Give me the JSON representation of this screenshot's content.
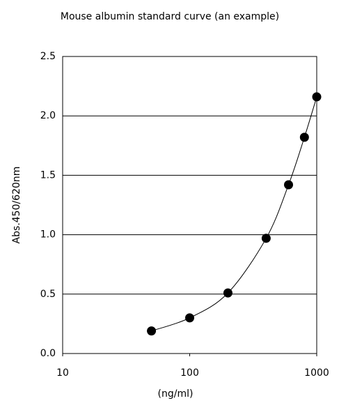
{
  "chart_data": {
    "type": "scatter",
    "title": "Mouse albumin standard curve (an example)",
    "x_label": "(ng/ml)",
    "y_label": "Abs.450/620nm",
    "x": [
      50,
      100,
      200,
      400,
      600,
      800,
      1000
    ],
    "values": [
      0.19,
      0.3,
      0.51,
      0.97,
      1.42,
      1.82,
      2.16
    ],
    "color": "#000000",
    "x_log": true,
    "grid": true,
    "line": true,
    "xlim": [
      10,
      1000
    ],
    "xticks": [
      10,
      100,
      1000
    ],
    "ylim": [
      0,
      2.5
    ],
    "yticks": [
      {
        "value": 0,
        "label": "0.0"
      },
      0.5,
      {
        "value": 1,
        "label": "1.0"
      },
      1.5,
      {
        "value": 2,
        "label": "2.0"
      },
      2.5
    ]
  }
}
